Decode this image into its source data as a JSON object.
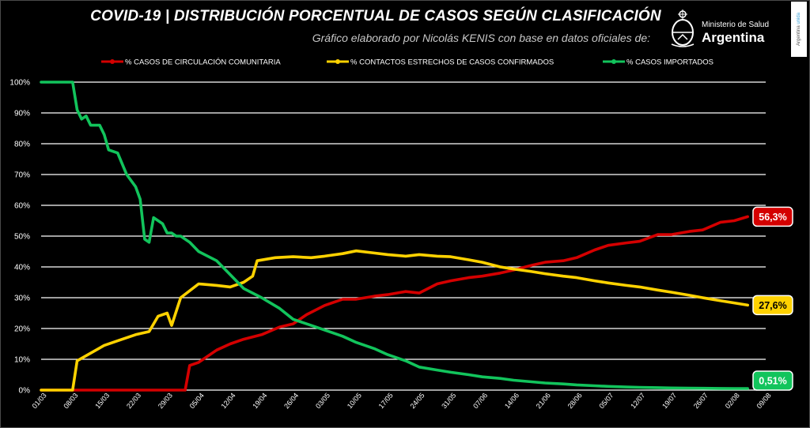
{
  "header": {
    "title": "COVID-19  |  DISTRIBUCIÓN PORCENTUAL DE CASOS SEGÚN CLASIFICACIÓN",
    "subtitle": "Gráfico elaborado por Nicolás KENIS con base en datos oficiales de:",
    "logo_line1": "Ministerio de Salud",
    "logo_line2": "Argentina",
    "side_tag_a": "Argentina",
    "side_tag_b": "unida"
  },
  "colors": {
    "comunitaria": "#d40000",
    "contactos": "#ffd200",
    "importados": "#12c45c",
    "grid": "#ffffff",
    "background": "#000000"
  },
  "chart_data": {
    "type": "line",
    "title": "COVID-19  |  DISTRIBUCIÓN PORCENTUAL DE CASOS SEGÚN CLASIFICACIÓN",
    "xlabel": "",
    "ylabel": "",
    "ylim": [
      0,
      100
    ],
    "y_unit": "%",
    "grid": true,
    "legend_position": "top",
    "x_tick_labels": [
      "01/03",
      "08/03",
      "15/03",
      "22/03",
      "29/03",
      "05/04",
      "12/04",
      "19/04",
      "26/04",
      "03/05",
      "10/05",
      "17/05",
      "24/05",
      "31/05",
      "07/06",
      "14/06",
      "21/06",
      "28/06",
      "05/07",
      "12/07",
      "19/07",
      "26/07",
      "02/08",
      "09/08"
    ],
    "y_tick_labels": [
      "0%",
      "10%",
      "20%",
      "30%",
      "40%",
      "50%",
      "60%",
      "70%",
      "80%",
      "90%",
      "100%"
    ],
    "x": [
      "01/03",
      "08/03",
      "15/03",
      "22/03",
      "29/03",
      "05/04",
      "12/04",
      "19/04",
      "26/04",
      "03/05",
      "10/05",
      "17/05",
      "24/05",
      "31/05",
      "07/06",
      "14/06",
      "21/06",
      "28/06",
      "05/07",
      "12/07",
      "19/07",
      "26/07",
      "02/08",
      "05/08"
    ],
    "series": [
      {
        "name": "% CASOS DE CIRCULACIÓN COMUNITARIA",
        "color": "#d40000",
        "points": [
          [
            "01/03",
            0
          ],
          [
            "08/03",
            0
          ],
          [
            "15/03",
            0
          ],
          [
            "22/03",
            0
          ],
          [
            "29/03",
            0
          ],
          [
            "02/04",
            0
          ],
          [
            "03/04",
            8
          ],
          [
            "05/04",
            9
          ],
          [
            "09/04",
            13
          ],
          [
            "12/04",
            15
          ],
          [
            "15/04",
            16.5
          ],
          [
            "19/04",
            18
          ],
          [
            "23/04",
            20.5
          ],
          [
            "26/04",
            21.5
          ],
          [
            "29/04",
            24.5
          ],
          [
            "03/05",
            27.5
          ],
          [
            "07/05",
            29.5
          ],
          [
            "10/05",
            29.5
          ],
          [
            "14/05",
            30.5
          ],
          [
            "17/05",
            31
          ],
          [
            "21/05",
            32
          ],
          [
            "24/05",
            31.5
          ],
          [
            "28/05",
            34.5
          ],
          [
            "31/05",
            35.5
          ],
          [
            "04/06",
            36.5
          ],
          [
            "07/06",
            37
          ],
          [
            "11/06",
            38
          ],
          [
            "14/06",
            39
          ],
          [
            "18/06",
            40.5
          ],
          [
            "21/06",
            41.5
          ],
          [
            "25/06",
            42
          ],
          [
            "28/06",
            43
          ],
          [
            "02/07",
            45.5
          ],
          [
            "05/07",
            47
          ],
          [
            "09/07",
            47.8
          ],
          [
            "12/07",
            48.3
          ],
          [
            "16/07",
            50.5
          ],
          [
            "19/07",
            50.5
          ],
          [
            "23/07",
            51.5
          ],
          [
            "26/07",
            52
          ],
          [
            "30/07",
            54.5
          ],
          [
            "02/08",
            55
          ],
          [
            "05/08",
            56.3
          ]
        ],
        "end_label": "56,3%"
      },
      {
        "name": "% CONTACTOS ESTRECHOS DE CASOS CONFIRMADOS",
        "color": "#ffd200",
        "points": [
          [
            "01/03",
            0
          ],
          [
            "08/03",
            0
          ],
          [
            "09/03",
            9.5
          ],
          [
            "12/03",
            12
          ],
          [
            "15/03",
            14.5
          ],
          [
            "18/03",
            16
          ],
          [
            "22/03",
            18
          ],
          [
            "25/03",
            19
          ],
          [
            "27/03",
            24
          ],
          [
            "29/03",
            25
          ],
          [
            "30/03",
            21
          ],
          [
            "01/04",
            30
          ],
          [
            "05/04",
            34.5
          ],
          [
            "09/04",
            34
          ],
          [
            "12/04",
            33.5
          ],
          [
            "15/04",
            35
          ],
          [
            "17/04",
            37
          ],
          [
            "18/04",
            42
          ],
          [
            "22/04",
            43
          ],
          [
            "26/04",
            43.3
          ],
          [
            "30/04",
            43
          ],
          [
            "03/05",
            43.5
          ],
          [
            "07/05",
            44.3
          ],
          [
            "10/05",
            45.2
          ],
          [
            "14/05",
            44.5
          ],
          [
            "17/05",
            44
          ],
          [
            "21/05",
            43.5
          ],
          [
            "24/05",
            44
          ],
          [
            "28/05",
            43.5
          ],
          [
            "31/05",
            43.3
          ],
          [
            "04/06",
            42.3
          ],
          [
            "07/06",
            41.5
          ],
          [
            "11/06",
            40
          ],
          [
            "14/06",
            39.3
          ],
          [
            "18/06",
            38.5
          ],
          [
            "21/06",
            37.8
          ],
          [
            "25/06",
            37
          ],
          [
            "28/06",
            36.5
          ],
          [
            "02/07",
            35.5
          ],
          [
            "05/07",
            34.8
          ],
          [
            "09/07",
            34
          ],
          [
            "12/07",
            33.5
          ],
          [
            "16/07",
            32.5
          ],
          [
            "19/07",
            31.8
          ],
          [
            "23/07",
            30.8
          ],
          [
            "26/07",
            30
          ],
          [
            "30/07",
            29
          ],
          [
            "02/08",
            28.3
          ],
          [
            "05/08",
            27.6
          ]
        ],
        "end_label": "27,6%"
      },
      {
        "name": "% CASOS IMPORTADOS",
        "color": "#12c45c",
        "points": [
          [
            "01/03",
            100
          ],
          [
            "08/03",
            100
          ],
          [
            "09/03",
            91
          ],
          [
            "10/03",
            88
          ],
          [
            "11/03",
            89
          ],
          [
            "12/03",
            86
          ],
          [
            "14/03",
            86
          ],
          [
            "15/03",
            83
          ],
          [
            "16/03",
            78
          ],
          [
            "18/03",
            77
          ],
          [
            "20/03",
            70
          ],
          [
            "22/03",
            66
          ],
          [
            "23/03",
            62
          ],
          [
            "24/03",
            49
          ],
          [
            "25/03",
            48
          ],
          [
            "26/03",
            56
          ],
          [
            "28/03",
            54
          ],
          [
            "29/03",
            51
          ],
          [
            "30/03",
            51
          ],
          [
            "31/03",
            50
          ],
          [
            "01/04",
            50
          ],
          [
            "03/04",
            48
          ],
          [
            "05/04",
            45
          ],
          [
            "09/04",
            42
          ],
          [
            "12/04",
            37.5
          ],
          [
            "15/04",
            33
          ],
          [
            "19/04",
            30
          ],
          [
            "23/04",
            26.5
          ],
          [
            "26/04",
            23
          ],
          [
            "30/04",
            21
          ],
          [
            "03/05",
            19.5
          ],
          [
            "07/05",
            17.5
          ],
          [
            "10/05",
            15.5
          ],
          [
            "14/05",
            13.5
          ],
          [
            "17/05",
            11.5
          ],
          [
            "21/05",
            9.5
          ],
          [
            "24/05",
            7.5
          ],
          [
            "28/05",
            6.5
          ],
          [
            "31/05",
            5.8
          ],
          [
            "04/06",
            5
          ],
          [
            "07/06",
            4.3
          ],
          [
            "11/06",
            3.8
          ],
          [
            "14/06",
            3.2
          ],
          [
            "18/06",
            2.7
          ],
          [
            "21/06",
            2.3
          ],
          [
            "25/06",
            2
          ],
          [
            "28/06",
            1.7
          ],
          [
            "02/07",
            1.4
          ],
          [
            "05/07",
            1.2
          ],
          [
            "09/07",
            1
          ],
          [
            "12/07",
            0.9
          ],
          [
            "16/07",
            0.8
          ],
          [
            "19/07",
            0.7
          ],
          [
            "23/07",
            0.65
          ],
          [
            "26/07",
            0.6
          ],
          [
            "30/07",
            0.55
          ],
          [
            "02/08",
            0.52
          ],
          [
            "05/08",
            0.51
          ]
        ],
        "end_label": "0,51%"
      }
    ]
  }
}
